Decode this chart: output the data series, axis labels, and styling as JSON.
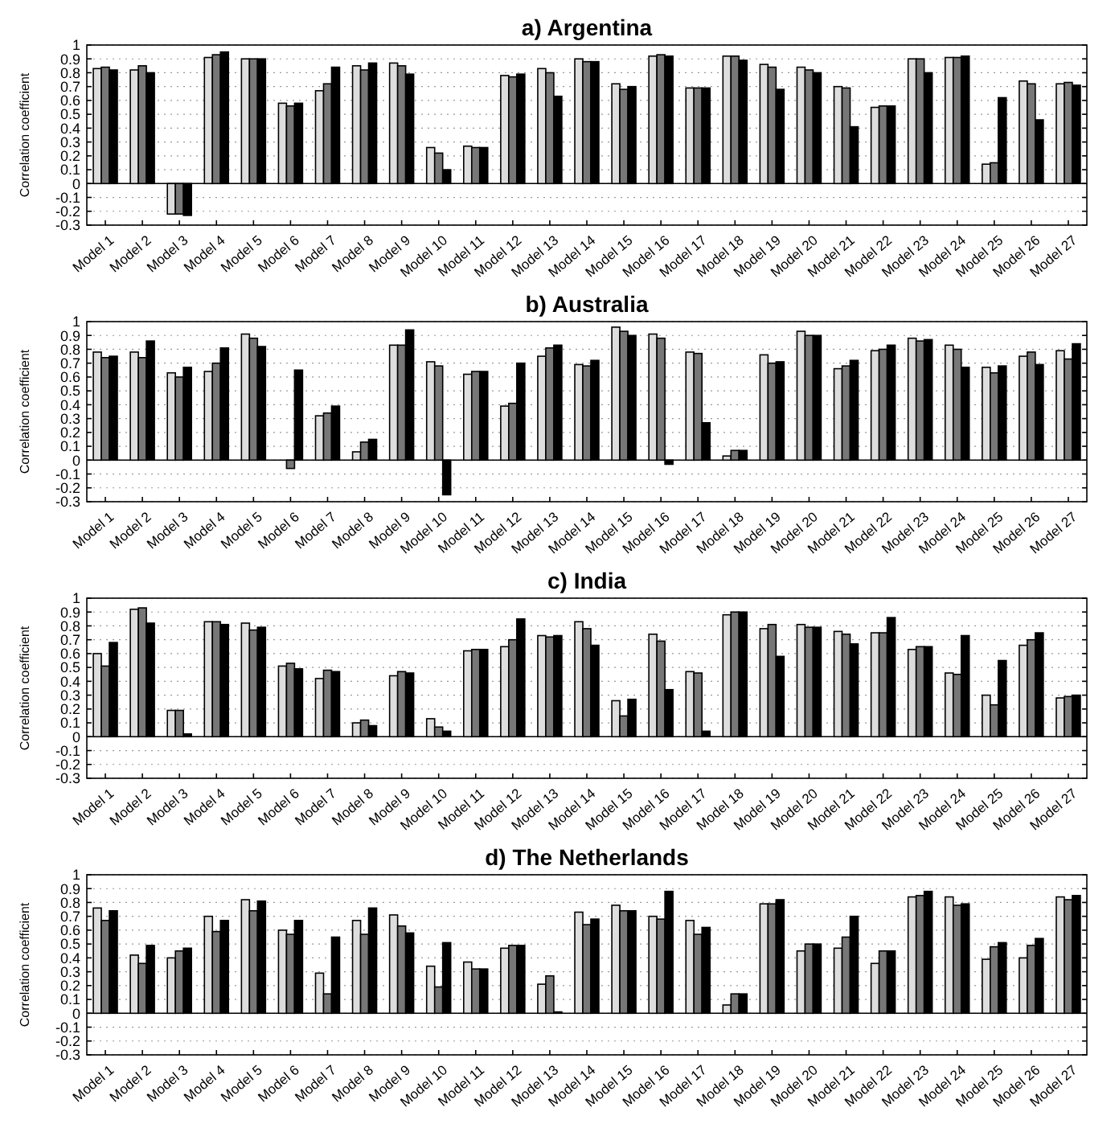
{
  "chart_data": [
    {
      "type": "bar",
      "title": "a) Argentina",
      "ylabel": "Correlation coefficient",
      "categories": [
        "Model 1",
        "Model 2",
        "Model 3",
        "Model 4",
        "Model 5",
        "Model 6",
        "Model 7",
        "Model 8",
        "Model 9",
        "Model 10",
        "Model 11",
        "Model 12",
        "Model 13",
        "Model 14",
        "Model 15",
        "Model 16",
        "Model 17",
        "Model 18",
        "Model 19",
        "Model 20",
        "Model 21",
        "Model 22",
        "Model 23",
        "Model 24",
        "Model 25",
        "Model 26",
        "Model 27"
      ],
      "ylim": [
        -0.3,
        1
      ],
      "yticks": [
        -0.3,
        -0.2,
        -0.1,
        0,
        0.1,
        0.2,
        0.3,
        0.4,
        0.5,
        0.6,
        0.7,
        0.8,
        0.9,
        1
      ],
      "grid": "y",
      "series": [
        {
          "color": "#dddddd",
          "values": [
            0.83,
            0.82,
            -0.22,
            0.91,
            0.9,
            0.58,
            0.67,
            0.85,
            0.87,
            0.26,
            0.27,
            0.78,
            0.83,
            0.9,
            0.72,
            0.92,
            0.69,
            0.92,
            0.86,
            0.84,
            0.7,
            0.55,
            0.9,
            0.91,
            0.14,
            0.74,
            0.72
          ]
        },
        {
          "color": "#777777",
          "values": [
            0.84,
            0.85,
            -0.22,
            0.93,
            0.9,
            0.56,
            0.72,
            0.82,
            0.85,
            0.22,
            0.26,
            0.77,
            0.8,
            0.88,
            0.68,
            0.93,
            0.69,
            0.92,
            0.84,
            0.82,
            0.69,
            0.56,
            0.9,
            0.91,
            0.15,
            0.72,
            0.73
          ]
        },
        {
          "color": "#000000",
          "values": [
            0.82,
            0.8,
            -0.23,
            0.95,
            0.9,
            0.58,
            0.84,
            0.87,
            0.79,
            0.1,
            0.26,
            0.79,
            0.63,
            0.88,
            0.7,
            0.92,
            0.69,
            0.89,
            0.68,
            0.8,
            0.41,
            0.56,
            0.8,
            0.92,
            0.62,
            0.46,
            0.71
          ]
        }
      ]
    },
    {
      "type": "bar",
      "title": "b) Australia",
      "ylabel": "Correlation coefficient",
      "categories": [
        "Model 1",
        "Model 2",
        "Model 3",
        "Model 4",
        "Model 5",
        "Model 6",
        "Model 7",
        "Model 8",
        "Model 9",
        "Model 10",
        "Model 11",
        "Model 12",
        "Model 13",
        "Model 14",
        "Model 15",
        "Model 16",
        "Model 17",
        "Model 18",
        "Model 19",
        "Model 20",
        "Model 21",
        "Model 22",
        "Model 23",
        "Model 24",
        "Model 25",
        "Model 26",
        "Model 27"
      ],
      "ylim": [
        -0.3,
        1
      ],
      "yticks": [
        -0.3,
        -0.2,
        -0.1,
        0,
        0.1,
        0.2,
        0.3,
        0.4,
        0.5,
        0.6,
        0.7,
        0.8,
        0.9,
        1
      ],
      "grid": "y",
      "series": [
        {
          "color": "#dddddd",
          "values": [
            0.78,
            0.78,
            0.63,
            0.64,
            0.91,
            0.0,
            0.32,
            0.06,
            0.83,
            0.71,
            0.62,
            0.39,
            0.75,
            0.69,
            0.96,
            0.91,
            0.78,
            0.03,
            0.76,
            0.93,
            0.66,
            0.79,
            0.88,
            0.83,
            0.67,
            0.75,
            0.79
          ]
        },
        {
          "color": "#777777",
          "values": [
            0.74,
            0.74,
            0.6,
            0.7,
            0.88,
            -0.06,
            0.34,
            0.13,
            0.83,
            0.68,
            0.64,
            0.41,
            0.81,
            0.68,
            0.93,
            0.88,
            0.77,
            0.07,
            0.7,
            0.9,
            0.68,
            0.8,
            0.86,
            0.8,
            0.63,
            0.78,
            0.73
          ]
        },
        {
          "color": "#000000",
          "values": [
            0.75,
            0.86,
            0.67,
            0.81,
            0.82,
            0.65,
            0.39,
            0.15,
            0.94,
            -0.25,
            0.64,
            0.7,
            0.83,
            0.72,
            0.9,
            -0.03,
            0.27,
            0.07,
            0.71,
            0.9,
            0.72,
            0.83,
            0.87,
            0.67,
            0.68,
            0.69,
            0.84
          ]
        }
      ]
    },
    {
      "type": "bar",
      "title": "c) India",
      "ylabel": "Correlation coefficient",
      "categories": [
        "Model 1",
        "Model 2",
        "Model 3",
        "Model 4",
        "Model 5",
        "Model 6",
        "Model 7",
        "Model 8",
        "Model 9",
        "Model 10",
        "Model 11",
        "Model 12",
        "Model 13",
        "Model 14",
        "Model 15",
        "Model 16",
        "Model 17",
        "Model 18",
        "Model 19",
        "Model 20",
        "Model 21",
        "Model 22",
        "Model 23",
        "Model 24",
        "Model 25",
        "Model 26",
        "Model 27"
      ],
      "ylim": [
        -0.3,
        1
      ],
      "yticks": [
        -0.3,
        -0.2,
        -0.1,
        0,
        0.1,
        0.2,
        0.3,
        0.4,
        0.5,
        0.6,
        0.7,
        0.8,
        0.9,
        1
      ],
      "grid": "y",
      "series": [
        {
          "color": "#dddddd",
          "values": [
            0.6,
            0.92,
            0.19,
            0.83,
            0.82,
            0.51,
            0.42,
            0.1,
            0.44,
            0.13,
            0.62,
            0.65,
            0.73,
            0.83,
            0.26,
            0.74,
            0.47,
            0.88,
            0.78,
            0.81,
            0.76,
            0.75,
            0.63,
            0.46,
            0.3,
            0.66,
            0.28
          ]
        },
        {
          "color": "#777777",
          "values": [
            0.51,
            0.93,
            0.19,
            0.83,
            0.77,
            0.53,
            0.48,
            0.12,
            0.47,
            0.07,
            0.63,
            0.7,
            0.72,
            0.78,
            0.15,
            0.69,
            0.46,
            0.9,
            0.81,
            0.79,
            0.74,
            0.75,
            0.65,
            0.45,
            0.23,
            0.7,
            0.29
          ]
        },
        {
          "color": "#000000",
          "values": [
            0.68,
            0.82,
            0.02,
            0.81,
            0.79,
            0.49,
            0.47,
            0.08,
            0.46,
            0.04,
            0.63,
            0.85,
            0.73,
            0.66,
            0.27,
            0.34,
            0.04,
            0.9,
            0.58,
            0.79,
            0.67,
            0.86,
            0.65,
            0.73,
            0.55,
            0.75,
            0.3
          ]
        }
      ]
    },
    {
      "type": "bar",
      "title": "d) The Netherlands",
      "ylabel": "Correlation coefficient",
      "categories": [
        "Model 1",
        "Model 2",
        "Model 3",
        "Model 4",
        "Model 5",
        "Model 6",
        "Model 7",
        "Model 8",
        "Model 9",
        "Model 10",
        "Model 11",
        "Model 12",
        "Model 13",
        "Model 14",
        "Model 15",
        "Model 16",
        "Model 17",
        "Model 18",
        "Model 19",
        "Model 20",
        "Model 21",
        "Model 22",
        "Model 23",
        "Model 24",
        "Model 25",
        "Model 26",
        "Model 27"
      ],
      "ylim": [
        -0.3,
        1
      ],
      "yticks": [
        -0.3,
        -0.2,
        -0.1,
        0,
        0.1,
        0.2,
        0.3,
        0.4,
        0.5,
        0.6,
        0.7,
        0.8,
        0.9,
        1
      ],
      "grid": "y",
      "series": [
        {
          "color": "#dddddd",
          "values": [
            0.76,
            0.42,
            0.4,
            0.7,
            0.82,
            0.6,
            0.29,
            0.67,
            0.71,
            0.34,
            0.37,
            0.47,
            0.21,
            0.73,
            0.78,
            0.7,
            0.67,
            0.06,
            0.79,
            0.45,
            0.47,
            0.36,
            0.84,
            0.84,
            0.39,
            0.4,
            0.84
          ]
        },
        {
          "color": "#777777",
          "values": [
            0.67,
            0.36,
            0.45,
            0.59,
            0.74,
            0.57,
            0.14,
            0.57,
            0.63,
            0.19,
            0.32,
            0.49,
            0.27,
            0.64,
            0.74,
            0.68,
            0.57,
            0.14,
            0.79,
            0.5,
            0.55,
            0.45,
            0.85,
            0.78,
            0.48,
            0.49,
            0.82
          ]
        },
        {
          "color": "#000000",
          "values": [
            0.74,
            0.49,
            0.47,
            0.67,
            0.81,
            0.67,
            0.55,
            0.76,
            0.58,
            0.51,
            0.32,
            0.49,
            0.01,
            0.68,
            0.74,
            0.88,
            0.62,
            0.14,
            0.82,
            0.5,
            0.7,
            0.45,
            0.88,
            0.79,
            0.51,
            0.54,
            0.85
          ]
        }
      ]
    }
  ]
}
